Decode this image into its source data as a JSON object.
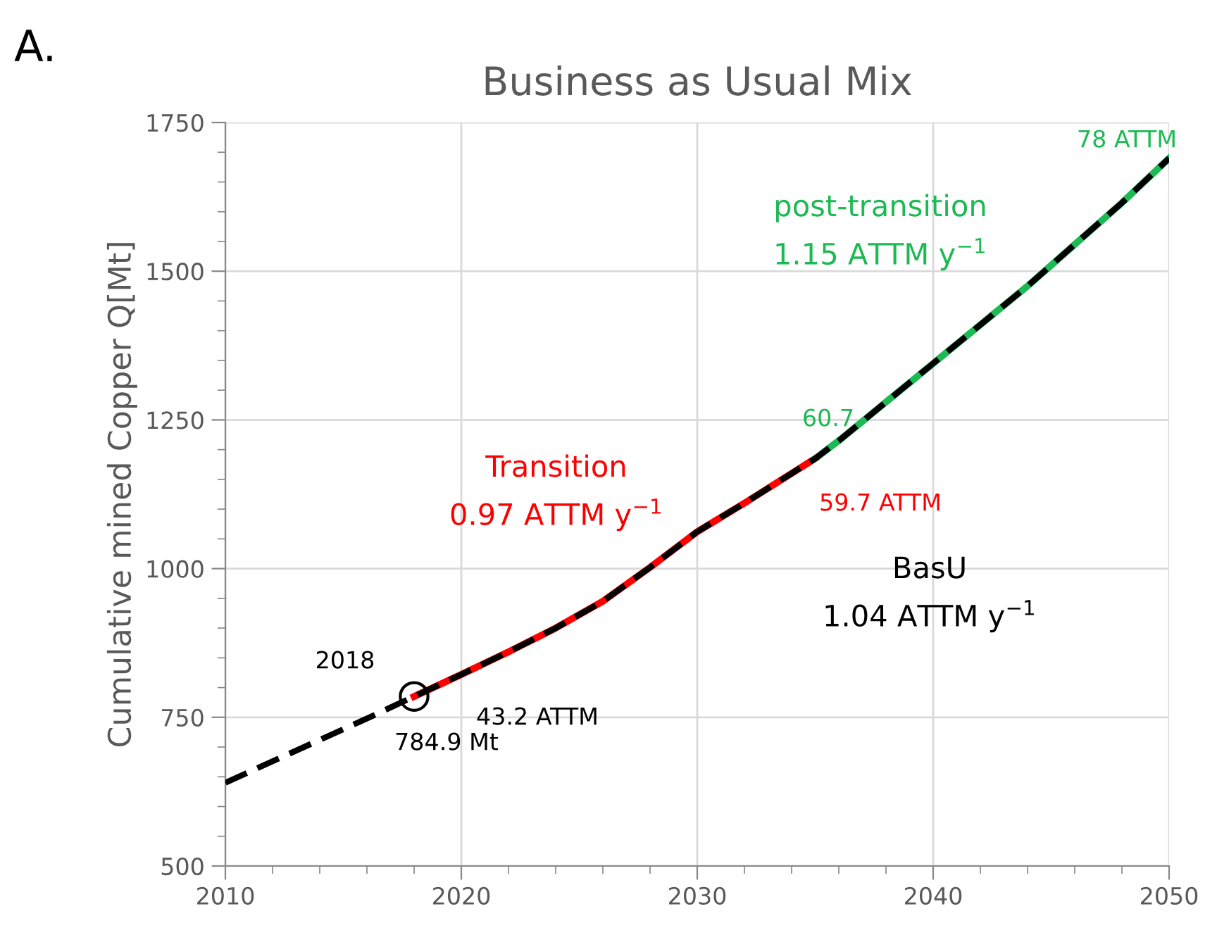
{
  "chart_data": {
    "type": "line",
    "title": "Business as Usual Mix",
    "ylabel": "Cumulative mined Copper Q[Mt]",
    "xlim": [
      2010,
      2050
    ],
    "xticks": [
      2010,
      2020,
      2030,
      2040,
      2050
    ],
    "ylim": [
      500,
      1750
    ],
    "yticks": [
      500,
      750,
      1000,
      1250,
      1500,
      1750
    ],
    "grid": true,
    "series": [
      {
        "color": "#ff0000",
        "line_style": "solid",
        "x": [
          2018,
          2020,
          2022,
          2024,
          2026,
          2028,
          2030,
          2032,
          2034,
          2035
        ],
        "values": [
          785,
          822,
          860,
          900,
          945,
          1002,
          1062,
          1110,
          1160,
          1185
        ]
      },
      {
        "color": "#1db954",
        "line_style": "solid",
        "x": [
          2035,
          2036,
          2038,
          2040,
          2042,
          2044,
          2046,
          2048,
          2050
        ],
        "values": [
          1185,
          1215,
          1280,
          1345,
          1410,
          1475,
          1545,
          1615,
          1690
        ]
      },
      {
        "color": "#000000",
        "line_style": "dashed",
        "x": [
          2010,
          2012,
          2014,
          2016,
          2018,
          2020,
          2022,
          2024,
          2026,
          2028,
          2030,
          2032,
          2034,
          2035,
          2036,
          2038,
          2040,
          2042,
          2044,
          2046,
          2048,
          2050
        ],
        "values": [
          640,
          676,
          712,
          748,
          785,
          822,
          860,
          900,
          945,
          1002,
          1062,
          1110,
          1160,
          1185,
          1215,
          1280,
          1345,
          1410,
          1475,
          1545,
          1615,
          1690
        ]
      },
      {
        "type": "scatter",
        "marker": "circle",
        "color": "#000000",
        "x": [
          2018
        ],
        "values": [
          785
        ]
      }
    ],
    "annotations": [
      "A.",
      "2018",
      "43.2 ATTM",
      "784.9 Mt",
      "Transition\n0.97 ATTM y$^{−1}$",
      "59.7 ATTM",
      "60.7",
      "post-transition\n1.15 ATTM y$^{−1}$",
      "78 ATTM",
      "BasU\n1.04 ATTM y$^{−1}$"
    ]
  }
}
